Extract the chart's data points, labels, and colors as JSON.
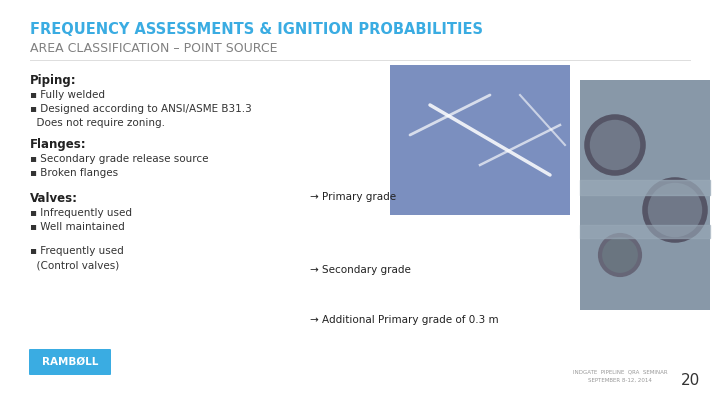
{
  "title_line1_part1": "FREQUENCY ASSESSMENTS & IGNITION",
  "title_line1_part2": " PROBABILITIES",
  "title_line1_color": "#3AACE2",
  "title_line1_dark": "#2E86AB",
  "title_line2": "AREA CLASSIFICATION – POINT SOURCE",
  "title_line2_color": "#808080",
  "bg_color": "#FFFFFF",
  "slide_number": "20",
  "footer_line1": "INDGATE  PIPELINE  QRA  SEMINAR",
  "footer_line2": "SEPTEMBER 8-12, 2014",
  "piping_header": "Piping:",
  "piping_items": [
    "▪ Fully welded",
    "▪ Designed according to ANSI/ASME B31.3",
    "  Does not require zoning."
  ],
  "flanges_header": "Flanges:",
  "flanges_items": [
    "▪ Secondary grade release source",
    "▪ Broken flanges"
  ],
  "flanges_arrow": "→ Primary grade",
  "valves_header": "Valves:",
  "valves_items": [
    "▪ Infrequently used",
    "▪ Well maintained"
  ],
  "valves_arrow": "→ Secondary grade",
  "control_items": [
    "▪ Frequently used",
    "  (Control valves)"
  ],
  "control_arrow": "→ Additional Primary grade of 0.3 m",
  "ramboll_box_color": "#3AACE2",
  "ramboll_text": "RAMBØLL",
  "img1_color": "#7B8FBF",
  "img2_color": "#B0B8C0",
  "header_color": "#222222",
  "body_color": "#333333",
  "arrow_color": "#222222",
  "title1_full": "FREQUENCY ASSESSMENTS & IGNITION PROBABILITIES"
}
